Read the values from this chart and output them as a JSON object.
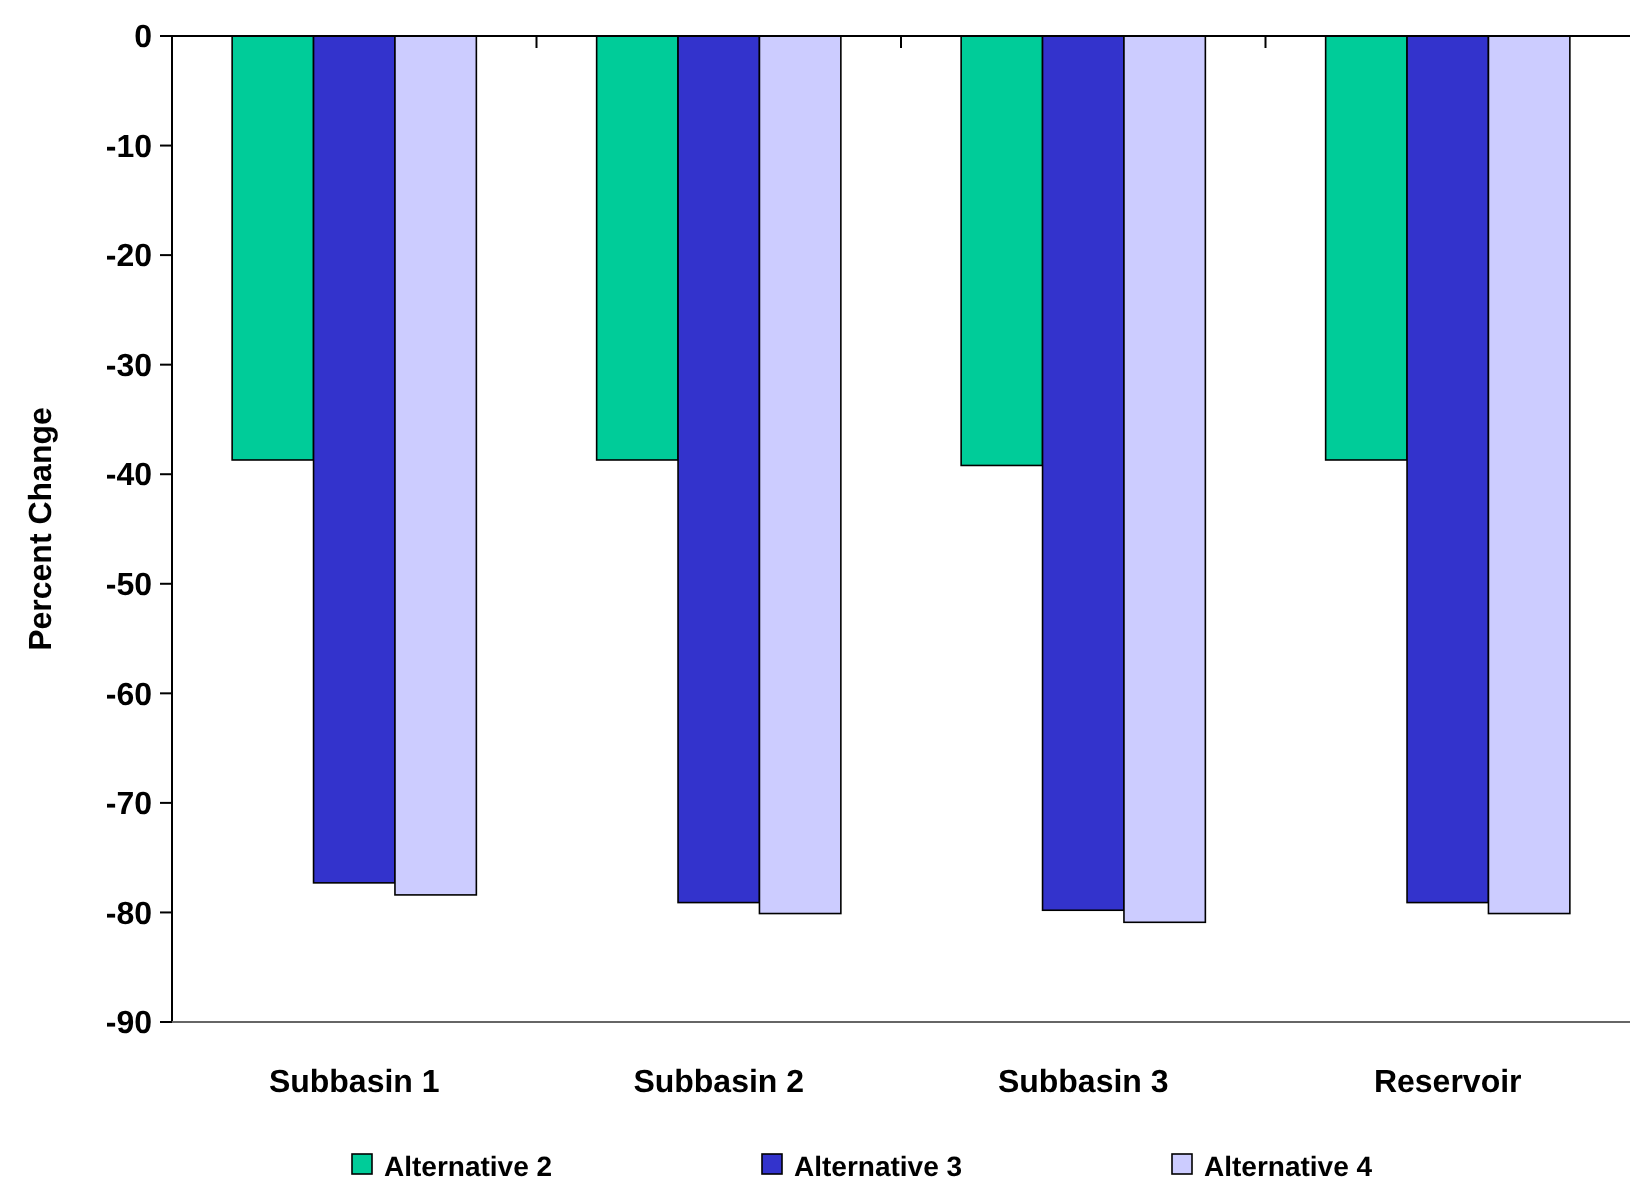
{
  "chart_data": {
    "type": "bar",
    "ylabel": "Percent Change",
    "categories": [
      "Subbasin 1",
      "Subbasin 2",
      "Subbasin 3",
      "Reservoir"
    ],
    "series": [
      {
        "name": "Alternative 2",
        "color": "#00cc99",
        "values": [
          -38.7,
          -38.7,
          -39.2,
          -38.7
        ]
      },
      {
        "name": "Alternative 3",
        "color": "#3333cc",
        "values": [
          -77.3,
          -79.1,
          -79.8,
          -79.1
        ]
      },
      {
        "name": "Alternative 4",
        "color": "#ccccff",
        "values": [
          -78.4,
          -80.1,
          -80.9,
          -80.1
        ]
      }
    ],
    "ylim": [
      -90,
      0
    ],
    "yticks": [
      0,
      -10,
      -20,
      -30,
      -40,
      -50,
      -60,
      -70,
      -80,
      -90
    ],
    "grid": false,
    "legend": "bottom"
  }
}
